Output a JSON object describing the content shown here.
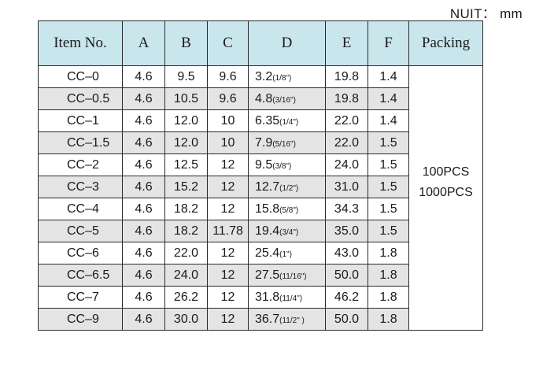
{
  "unit": "NUIT： mm",
  "headers": [
    "Item No.",
    "A",
    "B",
    "C",
    "D",
    "E",
    "F",
    "Packing"
  ],
  "packing": [
    "100PCS",
    "1000PCS"
  ],
  "rows": [
    {
      "item": "CC–0",
      "a": "4.6",
      "b": "9.5",
      "c": "9.6",
      "d": "3.2",
      "d_frac": "(1/8\")",
      "e": "19.8",
      "f": "1.4"
    },
    {
      "item": "CC–0.5",
      "a": "4.6",
      "b": "10.5",
      "c": "9.6",
      "d": "4.8",
      "d_frac": "(3/16\")",
      "e": "19.8",
      "f": "1.4"
    },
    {
      "item": "CC–1",
      "a": "4.6",
      "b": "12.0",
      "c": "10",
      "d": "6.35",
      "d_frac": "(1/4\")",
      "e": "22.0",
      "f": "1.4"
    },
    {
      "item": "CC–1.5",
      "a": "4.6",
      "b": "12.0",
      "c": "10",
      "d": "7.9",
      "d_frac": "(5/16\")",
      "e": "22.0",
      "f": "1.5"
    },
    {
      "item": "CC–2",
      "a": "4.6",
      "b": "12.5",
      "c": "12",
      "d": "9.5",
      "d_frac": "(3/8\")",
      "e": "24.0",
      "f": "1.5"
    },
    {
      "item": "CC–3",
      "a": "4.6",
      "b": "15.2",
      "c": "12",
      "d": "12.7",
      "d_frac": "(1/2\")",
      "e": "31.0",
      "f": "1.5"
    },
    {
      "item": "CC–4",
      "a": "4.6",
      "b": "18.2",
      "c": "12",
      "d": "15.8",
      "d_frac": "(5/8\")",
      "e": "34.3",
      "f": "1.5"
    },
    {
      "item": "CC–5",
      "a": "4.6",
      "b": "18.2",
      "c": "11.78",
      "d": "19.4",
      "d_frac": "(3/4\")",
      "e": "35.0",
      "f": "1.5"
    },
    {
      "item": "CC–6",
      "a": "4.6",
      "b": "22.0",
      "c": "12",
      "d": "25.4",
      "d_frac": "(1\")",
      "e": "43.0",
      "f": "1.8"
    },
    {
      "item": "CC–6.5",
      "a": "4.6",
      "b": "24.0",
      "c": "12",
      "d": "27.5",
      "d_frac": "(11/16\")",
      "e": "50.0",
      "f": "1.8"
    },
    {
      "item": "CC–7",
      "a": "4.6",
      "b": "26.2",
      "c": "12",
      "d": "31.8",
      "d_frac": "(11/4\")",
      "e": "46.2",
      "f": "1.8"
    },
    {
      "item": "CC–9",
      "a": "4.6",
      "b": "30.0",
      "c": "12",
      "d": "36.7",
      "d_frac": "(11/2\" )",
      "e": "50.0",
      "f": "1.8"
    }
  ]
}
